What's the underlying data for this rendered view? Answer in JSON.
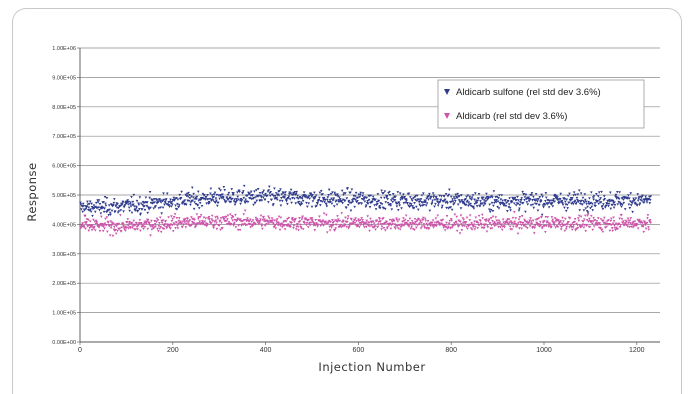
{
  "chart_data": {
    "type": "scatter",
    "title": "",
    "xlabel": "Injection Number",
    "ylabel": "Response",
    "xlim": [
      0,
      1250
    ],
    "ylim": [
      0,
      1000000
    ],
    "x_ticks": [
      0,
      200,
      400,
      600,
      800,
      1000,
      1200
    ],
    "x_tick_labels": [
      "0",
      "200",
      "400",
      "600",
      "800",
      "1000",
      "1200"
    ],
    "y_ticks": [
      0,
      100000,
      200000,
      300000,
      400000,
      500000,
      600000,
      700000,
      800000,
      900000,
      1000000
    ],
    "y_tick_labels": [
      "0.00E+00",
      "1.00E+05",
      "2.00E+05",
      "3.00E+05",
      "4.00E+05",
      "5.00E+05",
      "6.00E+05",
      "7.00E+05",
      "8.00E+05",
      "9.00E+05",
      "1.00E+06"
    ],
    "grid": "horizontal",
    "legend_position": "upper-right",
    "series": [
      {
        "name": "Aldicarb sulfone (rel std dev 3.6%)",
        "color": "#2e3a8c",
        "marker": "triangle-down",
        "x_range": [
          1,
          1230
        ],
        "trend": [
          [
            0,
            455000
          ],
          [
            100,
            462000
          ],
          [
            200,
            478000
          ],
          [
            300,
            492000
          ],
          [
            400,
            492000
          ],
          [
            500,
            488000
          ],
          [
            600,
            484000
          ],
          [
            700,
            482000
          ],
          [
            800,
            480000
          ],
          [
            900,
            478000
          ],
          [
            1000,
            479000
          ],
          [
            1100,
            481000
          ],
          [
            1230,
            482000
          ]
        ],
        "rel_std_dev_percent": 3.6
      },
      {
        "name": "Aldicarb (rel std dev 3.6%)",
        "color": "#cc55aa",
        "marker": "triangle-down",
        "x_range": [
          1,
          1230
        ],
        "trend": [
          [
            0,
            395000
          ],
          [
            100,
            393000
          ],
          [
            200,
            405000
          ],
          [
            300,
            410000
          ],
          [
            400,
            408000
          ],
          [
            500,
            405000
          ],
          [
            600,
            405000
          ],
          [
            700,
            403000
          ],
          [
            800,
            402000
          ],
          [
            900,
            402000
          ],
          [
            1000,
            403000
          ],
          [
            1100,
            403000
          ],
          [
            1230,
            405000
          ]
        ],
        "rel_std_dev_percent": 3.6
      }
    ]
  }
}
